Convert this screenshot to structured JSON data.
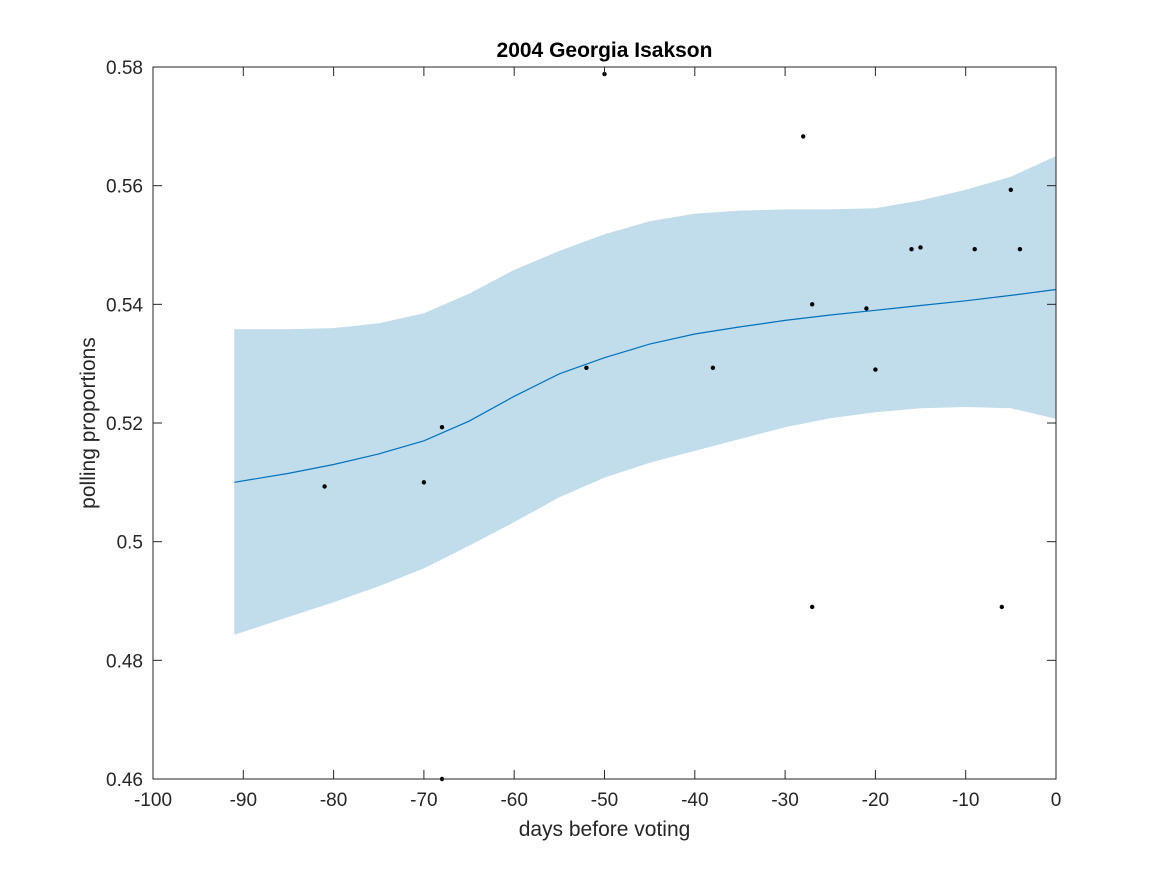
{
  "chart_data": {
    "type": "scatter",
    "title": "2004 Georgia Isakson",
    "xlabel": "days before voting",
    "ylabel": "polling proportions",
    "xlim": [
      -100,
      0
    ],
    "ylim": [
      0.46,
      0.58
    ],
    "xticks": [
      -100,
      -90,
      -80,
      -70,
      -60,
      -50,
      -40,
      -30,
      -20,
      -10,
      0
    ],
    "xtick_labels": [
      "-100",
      "-90",
      "-80",
      "-70",
      "-60",
      "-50",
      "-40",
      "-30",
      "-20",
      "-10",
      "0"
    ],
    "yticks": [
      0.46,
      0.48,
      0.5,
      0.52,
      0.54,
      0.56,
      0.58
    ],
    "ytick_labels": [
      "0.46",
      "0.48",
      "0.5",
      "0.52",
      "0.54",
      "0.56",
      "0.58"
    ],
    "grid": false,
    "colors": {
      "band": "#c1dcea",
      "line": "#0072bd",
      "points": "#000000",
      "axes": "#262626"
    },
    "series": [
      {
        "type": "scatter",
        "x": [
          -81,
          -70,
          -68,
          -68,
          -52,
          -50,
          -38,
          -28,
          -27,
          -27,
          -21,
          -20,
          -16,
          -15,
          -9,
          -6,
          -5,
          -4
        ],
        "y": [
          0.5093,
          0.51,
          0.5193,
          0.46,
          0.5293,
          0.5788,
          0.5293,
          0.5683,
          0.54,
          0.489,
          0.5393,
          0.529,
          0.5493,
          0.5496,
          0.5493,
          0.489,
          0.5593,
          0.5493
        ]
      },
      {
        "type": "line",
        "x": [
          -91,
          -85,
          -80,
          -75,
          -70,
          -65,
          -60,
          -55,
          -50,
          -45,
          -40,
          -35,
          -30,
          -25,
          -20,
          -15,
          -10,
          -5,
          0
        ],
        "y": [
          0.51,
          0.5115,
          0.513,
          0.5148,
          0.517,
          0.5203,
          0.5245,
          0.5283,
          0.531,
          0.5333,
          0.535,
          0.5362,
          0.5373,
          0.5382,
          0.539,
          0.5398,
          0.5406,
          0.5415,
          0.5425
        ]
      },
      {
        "type": "area",
        "x": [
          -91,
          -85,
          -80,
          -75,
          -70,
          -65,
          -60,
          -55,
          -50,
          -45,
          -40,
          -35,
          -30,
          -25,
          -20,
          -15,
          -10,
          -5,
          0
        ],
        "upper": [
          0.5358,
          0.5358,
          0.536,
          0.5368,
          0.5385,
          0.5418,
          0.5458,
          0.549,
          0.5518,
          0.554,
          0.5553,
          0.5558,
          0.556,
          0.556,
          0.5562,
          0.5575,
          0.5593,
          0.5615,
          0.565
        ],
        "lower": [
          0.4843,
          0.4873,
          0.4898,
          0.4925,
          0.4955,
          0.4993,
          0.5033,
          0.5075,
          0.5108,
          0.5133,
          0.5153,
          0.5173,
          0.5193,
          0.5208,
          0.5218,
          0.5225,
          0.5227,
          0.5225,
          0.5207
        ]
      }
    ]
  }
}
